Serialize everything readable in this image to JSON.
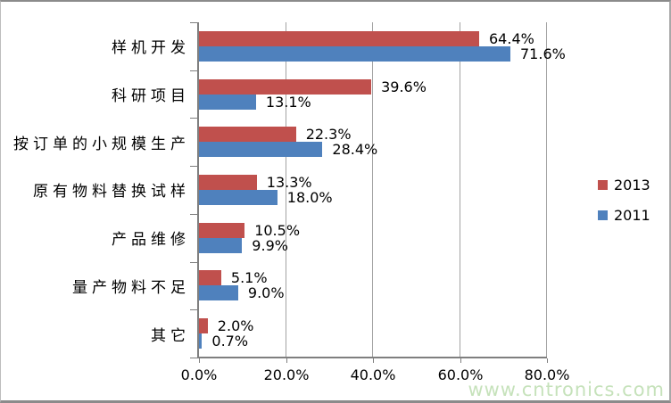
{
  "chart_data": {
    "type": "bar",
    "orientation": "horizontal",
    "title": "",
    "xlabel": "",
    "ylabel": "",
    "categories": [
      "样机开发",
      "科研项目",
      "按订单的小规模生产",
      "原有物料替换试样",
      "产品维修",
      "量产物料不足",
      "其它"
    ],
    "series": [
      {
        "name": "2013",
        "color": "#C0504D",
        "values": [
          64.4,
          39.6,
          22.3,
          13.3,
          10.5,
          5.1,
          2.0
        ],
        "data_labels": [
          "64.4%",
          "39.6%",
          "22.3%",
          "13.3%",
          "10.5%",
          "5.1%",
          "2.0%"
        ]
      },
      {
        "name": "2011",
        "color": "#4F81BD",
        "values": [
          71.6,
          13.1,
          28.4,
          18.0,
          9.9,
          9.0,
          0.7
        ],
        "data_labels": [
          "71.6%",
          "13.1%",
          "28.4%",
          "18.0%",
          "9.9%",
          "9.0%",
          "0.7%"
        ]
      }
    ],
    "x_axis": {
      "min": 0,
      "max": 80,
      "tick_values": [
        0,
        20,
        40,
        60,
        80
      ],
      "tick_labels": [
        "0.0%",
        "20.0%",
        "40.0%",
        "60.0%",
        "80.0%"
      ]
    },
    "grid": "vertical-gridlines-on",
    "legend": {
      "position": "right",
      "order": [
        "2013",
        "2011"
      ]
    }
  },
  "watermark": {
    "text": "www.cntronics.com",
    "color": "#c6e2bb"
  }
}
